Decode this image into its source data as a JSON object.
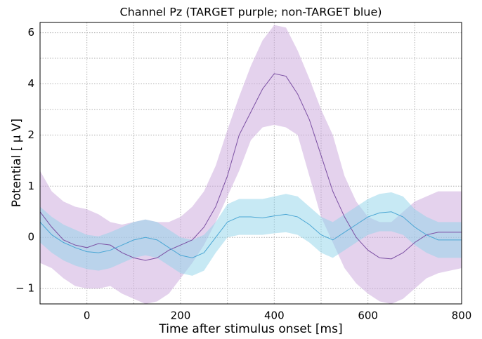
{
  "chart_data": {
    "type": "band-line",
    "title": "Channel Pz (TARGET purple; non-TARGET blue)",
    "xlabel": "Time after stimulus onset [ms]",
    "ylabel": "Potential [ μ V]",
    "x": [
      -100,
      -75,
      -50,
      -25,
      0,
      25,
      50,
      75,
      100,
      125,
      150,
      175,
      200,
      225,
      250,
      275,
      300,
      325,
      350,
      375,
      400,
      425,
      450,
      475,
      500,
      525,
      550,
      575,
      600,
      625,
      650,
      675,
      700,
      725,
      750,
      775,
      800
    ],
    "xlim": [
      -100,
      800
    ],
    "xticks": [
      0,
      200,
      400,
      600,
      800
    ],
    "xminorticks": [
      -100,
      100,
      300,
      500,
      700
    ],
    "ylim": [
      -1.3,
      6.4
    ],
    "yscale": "tick-spaced",
    "yticks": [
      {
        "value": -1,
        "label": "− 1"
      },
      0,
      1,
      2,
      4,
      6
    ],
    "yminorticks": [
      3,
      5
    ],
    "grid": true,
    "series": [
      {
        "color": "#7b4fa3",
        "fill": "#c9a6dc",
        "values": [
          0.5,
          0.2,
          -0.05,
          -0.15,
          -0.2,
          -0.12,
          -0.15,
          -0.3,
          -0.4,
          -0.45,
          -0.4,
          -0.25,
          -0.15,
          -0.05,
          0.2,
          0.6,
          1.2,
          2.0,
          2.9,
          3.8,
          4.4,
          4.3,
          3.6,
          2.6,
          1.6,
          0.9,
          0.4,
          0.0,
          -0.25,
          -0.4,
          -0.42,
          -0.3,
          -0.1,
          0.05,
          0.1,
          0.1,
          0.1
        ],
        "lower": [
          -0.5,
          -0.6,
          -0.8,
          -0.95,
          -1.0,
          -1.0,
          -0.95,
          -1.1,
          -1.2,
          -1.3,
          -1.25,
          -1.1,
          -0.8,
          -0.5,
          -0.15,
          0.3,
          0.8,
          1.3,
          1.9,
          2.3,
          2.4,
          2.3,
          2.0,
          1.2,
          0.4,
          -0.1,
          -0.6,
          -0.9,
          -1.1,
          -1.25,
          -1.3,
          -1.2,
          -1.0,
          -0.8,
          -0.7,
          -0.65,
          -0.6
        ],
        "upper": [
          1.3,
          0.9,
          0.7,
          0.6,
          0.55,
          0.45,
          0.3,
          0.25,
          0.3,
          0.35,
          0.3,
          0.3,
          0.4,
          0.6,
          0.9,
          1.4,
          2.2,
          3.5,
          4.7,
          5.7,
          6.3,
          6.2,
          5.3,
          4.2,
          3.0,
          2.0,
          1.2,
          0.7,
          0.4,
          0.3,
          0.3,
          0.5,
          0.7,
          0.8,
          0.9,
          0.9,
          0.9
        ]
      },
      {
        "color": "#4aa6d4",
        "fill": "#8fd3ea",
        "values": [
          0.3,
          0.05,
          -0.1,
          -0.2,
          -0.28,
          -0.3,
          -0.25,
          -0.15,
          -0.05,
          0.0,
          -0.05,
          -0.2,
          -0.35,
          -0.4,
          -0.3,
          0.0,
          0.3,
          0.4,
          0.4,
          0.38,
          0.42,
          0.45,
          0.4,
          0.25,
          0.05,
          -0.05,
          0.1,
          0.25,
          0.4,
          0.48,
          0.5,
          0.4,
          0.2,
          0.05,
          -0.05,
          -0.05,
          -0.05
        ],
        "lower": [
          -0.1,
          -0.3,
          -0.45,
          -0.55,
          -0.62,
          -0.65,
          -0.6,
          -0.5,
          -0.4,
          -0.35,
          -0.4,
          -0.55,
          -0.7,
          -0.75,
          -0.65,
          -0.3,
          0.0,
          0.05,
          0.05,
          0.05,
          0.08,
          0.1,
          0.05,
          -0.1,
          -0.3,
          -0.4,
          -0.25,
          -0.1,
          0.05,
          0.12,
          0.12,
          0.05,
          -0.15,
          -0.3,
          -0.4,
          -0.4,
          -0.4
        ],
        "upper": [
          0.6,
          0.4,
          0.25,
          0.15,
          0.05,
          0.02,
          0.1,
          0.2,
          0.3,
          0.35,
          0.3,
          0.15,
          0.0,
          -0.05,
          0.05,
          0.3,
          0.65,
          0.75,
          0.75,
          0.75,
          0.8,
          0.85,
          0.8,
          0.6,
          0.4,
          0.3,
          0.45,
          0.6,
          0.75,
          0.85,
          0.88,
          0.8,
          0.55,
          0.4,
          0.3,
          0.3,
          0.3
        ]
      }
    ]
  }
}
